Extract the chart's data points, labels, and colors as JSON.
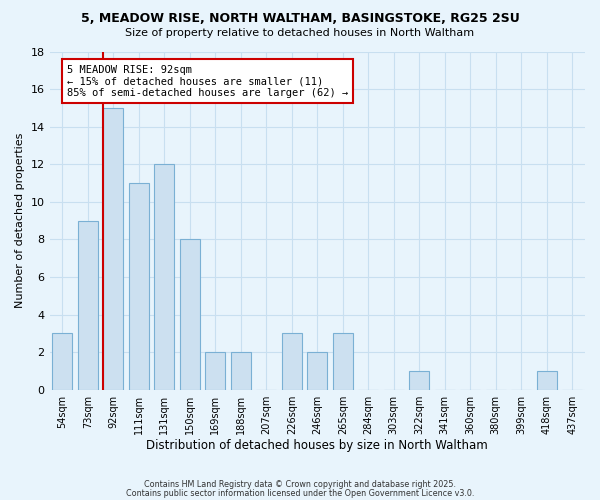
{
  "title_line1": "5, MEADOW RISE, NORTH WALTHAM, BASINGSTOKE, RG25 2SU",
  "title_line2": "Size of property relative to detached houses in North Waltham",
  "xlabel": "Distribution of detached houses by size in North Waltham",
  "ylabel": "Number of detached properties",
  "bar_labels": [
    "54sqm",
    "73sqm",
    "92sqm",
    "111sqm",
    "131sqm",
    "150sqm",
    "169sqm",
    "188sqm",
    "207sqm",
    "226sqm",
    "246sqm",
    "265sqm",
    "284sqm",
    "303sqm",
    "322sqm",
    "341sqm",
    "360sqm",
    "380sqm",
    "399sqm",
    "418sqm",
    "437sqm"
  ],
  "bar_values": [
    3,
    9,
    15,
    11,
    12,
    8,
    2,
    2,
    0,
    3,
    2,
    3,
    0,
    0,
    1,
    0,
    0,
    0,
    0,
    1,
    0
  ],
  "bar_fill_color": "#cce0f0",
  "bar_edge_color": "#7ab0d4",
  "highlight_index": 2,
  "highlight_line_color": "#cc0000",
  "ylim": [
    0,
    18
  ],
  "yticks": [
    0,
    2,
    4,
    6,
    8,
    10,
    12,
    14,
    16,
    18
  ],
  "annotation_title": "5 MEADOW RISE: 92sqm",
  "annotation_line1": "← 15% of detached houses are smaller (11)",
  "annotation_line2": "85% of semi-detached houses are larger (62) →",
  "annotation_box_color": "#ffffff",
  "annotation_box_edge": "#cc0000",
  "background_color": "#e8f4fc",
  "grid_color": "#c8dff0",
  "footer1": "Contains HM Land Registry data © Crown copyright and database right 2025.",
  "footer2": "Contains public sector information licensed under the Open Government Licence v3.0."
}
